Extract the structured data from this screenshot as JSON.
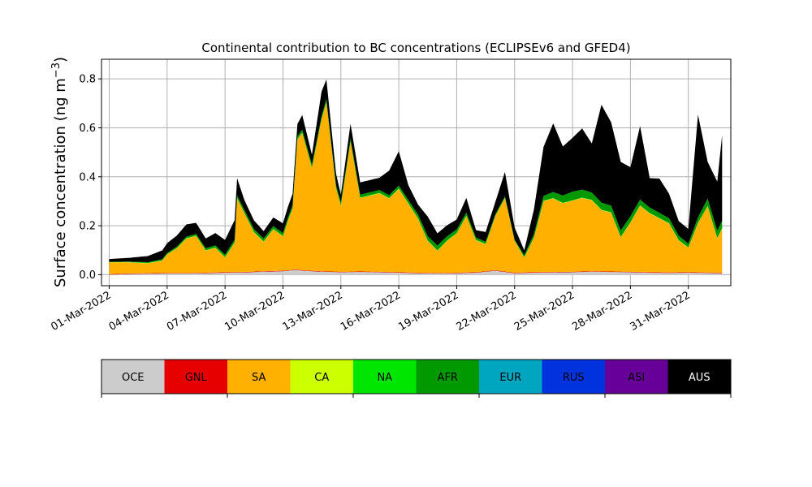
{
  "chart_data": {
    "type": "area",
    "title": "Continental contribution to BC concentrations (ECLIPSEv6 and GFED4)",
    "ylabel": "Surface concentration (ng m",
    "ylabel_superscript": "−3",
    "ylabel_close": ")",
    "ylim": [
      -0.045,
      0.88
    ],
    "yticks": [
      0.0,
      0.2,
      0.4,
      0.6,
      0.8
    ],
    "ytick_labels": [
      "0.0",
      "0.2",
      "0.4",
      "0.6",
      "0.8"
    ],
    "xlim_days": [
      -0.4,
      32.2
    ],
    "xtick_days": [
      0,
      3,
      6,
      9,
      12,
      15,
      18,
      21,
      24,
      27,
      30
    ],
    "xtick_labels": [
      "01-Mar-2022",
      "04-Mar-2022",
      "07-Mar-2022",
      "10-Mar-2022",
      "13-Mar-2022",
      "16-Mar-2022",
      "19-Mar-2022",
      "22-Mar-2022",
      "25-Mar-2022",
      "28-Mar-2022",
      "31-Mar-2022"
    ],
    "grid": true,
    "x_start": "2022-03-01",
    "x_end": "2022-04-01T18:00",
    "series_keyframes": {
      "OCE": [
        [
          "2022-03-01",
          0.0
        ],
        [
          "2022-03-02",
          0.003
        ],
        [
          "2022-03-03",
          0.004
        ],
        [
          "2022-03-04",
          0.005
        ],
        [
          "2022-03-05",
          0.005
        ],
        [
          "2022-03-06",
          0.006
        ],
        [
          "2022-03-07",
          0.008
        ],
        [
          "2022-03-08",
          0.009
        ],
        [
          "2022-03-09",
          0.012
        ],
        [
          "2022-03-10",
          0.014
        ],
        [
          "2022-03-10T18:00",
          0.02
        ],
        [
          "2022-03-11",
          0.016
        ],
        [
          "2022-03-12",
          0.012
        ],
        [
          "2022-03-13",
          0.01
        ],
        [
          "2022-03-14",
          0.011
        ],
        [
          "2022-03-15",
          0.01
        ],
        [
          "2022-03-16",
          0.008
        ],
        [
          "2022-03-17",
          0.006
        ],
        [
          "2022-03-18",
          0.005
        ],
        [
          "2022-03-19",
          0.006
        ],
        [
          "2022-03-20",
          0.008
        ],
        [
          "2022-03-21",
          0.016
        ],
        [
          "2022-03-22",
          0.006
        ],
        [
          "2022-03-23",
          0.008
        ],
        [
          "2022-03-24",
          0.009
        ],
        [
          "2022-03-25",
          0.01
        ],
        [
          "2022-03-26",
          0.012
        ],
        [
          "2022-03-27",
          0.011
        ],
        [
          "2022-03-28",
          0.01
        ],
        [
          "2022-03-29",
          0.008
        ],
        [
          "2022-03-30",
          0.007
        ],
        [
          "2022-03-31",
          0.008
        ],
        [
          "2022-04-01T18:00",
          0.006
        ]
      ],
      "GNL": [
        [
          "2022-03-01",
          0.002
        ],
        [
          "2022-04-01T18:00",
          0.002
        ]
      ],
      "SA": [
        [
          "2022-03-01",
          0.048
        ],
        [
          "2022-03-02",
          0.045
        ],
        [
          "2022-03-03",
          0.04
        ],
        [
          "2022-03-03T18:00",
          0.05
        ],
        [
          "2022-03-04",
          0.075
        ],
        [
          "2022-03-04T12:00",
          0.1
        ],
        [
          "2022-03-05",
          0.14
        ],
        [
          "2022-03-05T12:00",
          0.15
        ],
        [
          "2022-03-06",
          0.09
        ],
        [
          "2022-03-06T12:00",
          0.1
        ],
        [
          "2022-03-07",
          0.06
        ],
        [
          "2022-03-07T12:00",
          0.12
        ],
        [
          "2022-03-07T15:00",
          0.3
        ],
        [
          "2022-03-08",
          0.24
        ],
        [
          "2022-03-08T12:00",
          0.16
        ],
        [
          "2022-03-09",
          0.12
        ],
        [
          "2022-03-09T12:00",
          0.17
        ],
        [
          "2022-03-10",
          0.14
        ],
        [
          "2022-03-10T06:00",
          0.2
        ],
        [
          "2022-03-10T12:00",
          0.25
        ],
        [
          "2022-03-10T18:00",
          0.53
        ],
        [
          "2022-03-11",
          0.56
        ],
        [
          "2022-03-11T12:00",
          0.42
        ],
        [
          "2022-03-12",
          0.62
        ],
        [
          "2022-03-12T06:00",
          0.69
        ],
        [
          "2022-03-12T18:00",
          0.34
        ],
        [
          "2022-03-13",
          0.27
        ],
        [
          "2022-03-13T12:00",
          0.53
        ],
        [
          "2022-03-14",
          0.3
        ],
        [
          "2022-03-15",
          0.32
        ],
        [
          "2022-03-15T12:00",
          0.3
        ],
        [
          "2022-03-16",
          0.34
        ],
        [
          "2022-03-16T12:00",
          0.28
        ],
        [
          "2022-03-17",
          0.22
        ],
        [
          "2022-03-17T12:00",
          0.13
        ],
        [
          "2022-03-18",
          0.09
        ],
        [
          "2022-03-18T12:00",
          0.13
        ],
        [
          "2022-03-19",
          0.16
        ],
        [
          "2022-03-19T12:00",
          0.23
        ],
        [
          "2022-03-20",
          0.13
        ],
        [
          "2022-03-20T12:00",
          0.11
        ],
        [
          "2022-03-21",
          0.22
        ],
        [
          "2022-03-21T12:00",
          0.3
        ],
        [
          "2022-03-22",
          0.13
        ],
        [
          "2022-03-22T12:00",
          0.06
        ],
        [
          "2022-03-23",
          0.14
        ],
        [
          "2022-03-23T12:00",
          0.29
        ],
        [
          "2022-03-24",
          0.3
        ],
        [
          "2022-03-24T12:00",
          0.28
        ],
        [
          "2022-03-25",
          0.29
        ],
        [
          "2022-03-25T12:00",
          0.3
        ],
        [
          "2022-03-26",
          0.29
        ],
        [
          "2022-03-26T12:00",
          0.25
        ],
        [
          "2022-03-27",
          0.24
        ],
        [
          "2022-03-27T12:00",
          0.14
        ],
        [
          "2022-03-28",
          0.2
        ],
        [
          "2022-03-28T12:00",
          0.27
        ],
        [
          "2022-03-29",
          0.24
        ],
        [
          "2022-03-29T12:00",
          0.22
        ],
        [
          "2022-03-30",
          0.2
        ],
        [
          "2022-03-30T12:00",
          0.13
        ],
        [
          "2022-03-31",
          0.1
        ],
        [
          "2022-03-31T12:00",
          0.2
        ],
        [
          "2022-04-01",
          0.27
        ],
        [
          "2022-04-01T12:00",
          0.14
        ],
        [
          "2022-04-01T18:00",
          0.18
        ]
      ],
      "CA": [
        [
          "2022-03-01",
          0.001
        ],
        [
          "2022-04-01T18:00",
          0.001
        ]
      ],
      "NA": [
        [
          "2022-03-01",
          0.001
        ],
        [
          "2022-04-01T18:00",
          0.001
        ]
      ],
      "AFR": [
        [
          "2022-03-01",
          0.0
        ],
        [
          "2022-03-06",
          0.008
        ],
        [
          "2022-03-08",
          0.012
        ],
        [
          "2022-03-12",
          0.012
        ],
        [
          "2022-03-16",
          0.012
        ],
        [
          "2022-03-18",
          0.02
        ],
        [
          "2022-03-20",
          0.01
        ],
        [
          "2022-03-22",
          0.003
        ],
        [
          "2022-03-24",
          0.025
        ],
        [
          "2022-03-25",
          0.035
        ],
        [
          "2022-03-26",
          0.03
        ],
        [
          "2022-03-28",
          0.025
        ],
        [
          "2022-03-30",
          0.02
        ],
        [
          "2022-03-31",
          0.015
        ],
        [
          "2022-04-01",
          0.03
        ],
        [
          "2022-04-01T18:00",
          0.03
        ]
      ],
      "EUR": [
        [
          "2022-03-01",
          0.0
        ],
        [
          "2022-04-01T18:00",
          0.0
        ]
      ],
      "RUS": [
        [
          "2022-03-01",
          0.0
        ],
        [
          "2022-04-01T18:00",
          0.0
        ]
      ],
      "ASI": [
        [
          "2022-03-01",
          0.0
        ],
        [
          "2022-04-01T18:00",
          0.0
        ]
      ],
      "AUS": [
        [
          "2022-03-01",
          0.012
        ],
        [
          "2022-03-02",
          0.015
        ],
        [
          "2022-03-03",
          0.025
        ],
        [
          "2022-03-04",
          0.04
        ],
        [
          "2022-03-05",
          0.05
        ],
        [
          "2022-03-06",
          0.04
        ],
        [
          "2022-03-07",
          0.06
        ],
        [
          "2022-03-07T12:00",
          0.08
        ],
        [
          "2022-03-08",
          0.04
        ],
        [
          "2022-03-09",
          0.03
        ],
        [
          "2022-03-10",
          0.04
        ],
        [
          "2022-03-10T18:00",
          0.05
        ],
        [
          "2022-03-11",
          0.06
        ],
        [
          "2022-03-11T12:00",
          0.04
        ],
        [
          "2022-03-12",
          0.1
        ],
        [
          "2022-03-12T06:00",
          0.08
        ],
        [
          "2022-03-13",
          0.03
        ],
        [
          "2022-03-13T12:00",
          0.06
        ],
        [
          "2022-03-14",
          0.05
        ],
        [
          "2022-03-15",
          0.05
        ],
        [
          "2022-03-15T12:00",
          0.1
        ],
        [
          "2022-03-16",
          0.14
        ],
        [
          "2022-03-16T12:00",
          0.06
        ],
        [
          "2022-03-17",
          0.04
        ],
        [
          "2022-03-17T12:00",
          0.08
        ],
        [
          "2022-03-18",
          0.05
        ],
        [
          "2022-03-19",
          0.04
        ],
        [
          "2022-03-19T12:00",
          0.06
        ],
        [
          "2022-03-20",
          0.03
        ],
        [
          "2022-03-21",
          0.05
        ],
        [
          "2022-03-21T12:00",
          0.1
        ],
        [
          "2022-03-22",
          0.05
        ],
        [
          "2022-03-22T12:00",
          0.02
        ],
        [
          "2022-03-23",
          0.1
        ],
        [
          "2022-03-23T12:00",
          0.2
        ],
        [
          "2022-03-24",
          0.28
        ],
        [
          "2022-03-24T12:00",
          0.2
        ],
        [
          "2022-03-25",
          0.22
        ],
        [
          "2022-03-25T12:00",
          0.25
        ],
        [
          "2022-03-26",
          0.2
        ],
        [
          "2022-03-26T12:00",
          0.4
        ],
        [
          "2022-03-27",
          0.34
        ],
        [
          "2022-03-27T12:00",
          0.28
        ],
        [
          "2022-03-28",
          0.2
        ],
        [
          "2022-03-28T12:00",
          0.3
        ],
        [
          "2022-03-29",
          0.12
        ],
        [
          "2022-03-29T12:00",
          0.14
        ],
        [
          "2022-03-30",
          0.1
        ],
        [
          "2022-03-30T12:00",
          0.06
        ],
        [
          "2022-03-31",
          0.06
        ],
        [
          "2022-03-31T12:00",
          0.42
        ],
        [
          "2022-04-01",
          0.15
        ],
        [
          "2022-04-01T12:00",
          0.2
        ],
        [
          "2022-04-01T18:00",
          0.35
        ]
      ]
    }
  },
  "legend": {
    "items": [
      {
        "label": "OCE",
        "color": "#cccccc",
        "text_color": "#000000"
      },
      {
        "label": "GNL",
        "color": "#e60000",
        "text_color": "#000000"
      },
      {
        "label": "SA",
        "color": "#ffb000",
        "text_color": "#000000"
      },
      {
        "label": "CA",
        "color": "#ccff00",
        "text_color": "#000000"
      },
      {
        "label": "NA",
        "color": "#00e600",
        "text_color": "#000000"
      },
      {
        "label": "AFR",
        "color": "#009900",
        "text_color": "#000000"
      },
      {
        "label": "EUR",
        "color": "#00a6c0",
        "text_color": "#000000"
      },
      {
        "label": "RUS",
        "color": "#0033dd",
        "text_color": "#000000"
      },
      {
        "label": "ASI",
        "color": "#660099",
        "text_color": "#000000"
      },
      {
        "label": "AUS",
        "color": "#000000",
        "text_color": "#ffffff"
      }
    ]
  },
  "colors": {
    "grid": "#b0b0b0",
    "axis": "#000000"
  }
}
